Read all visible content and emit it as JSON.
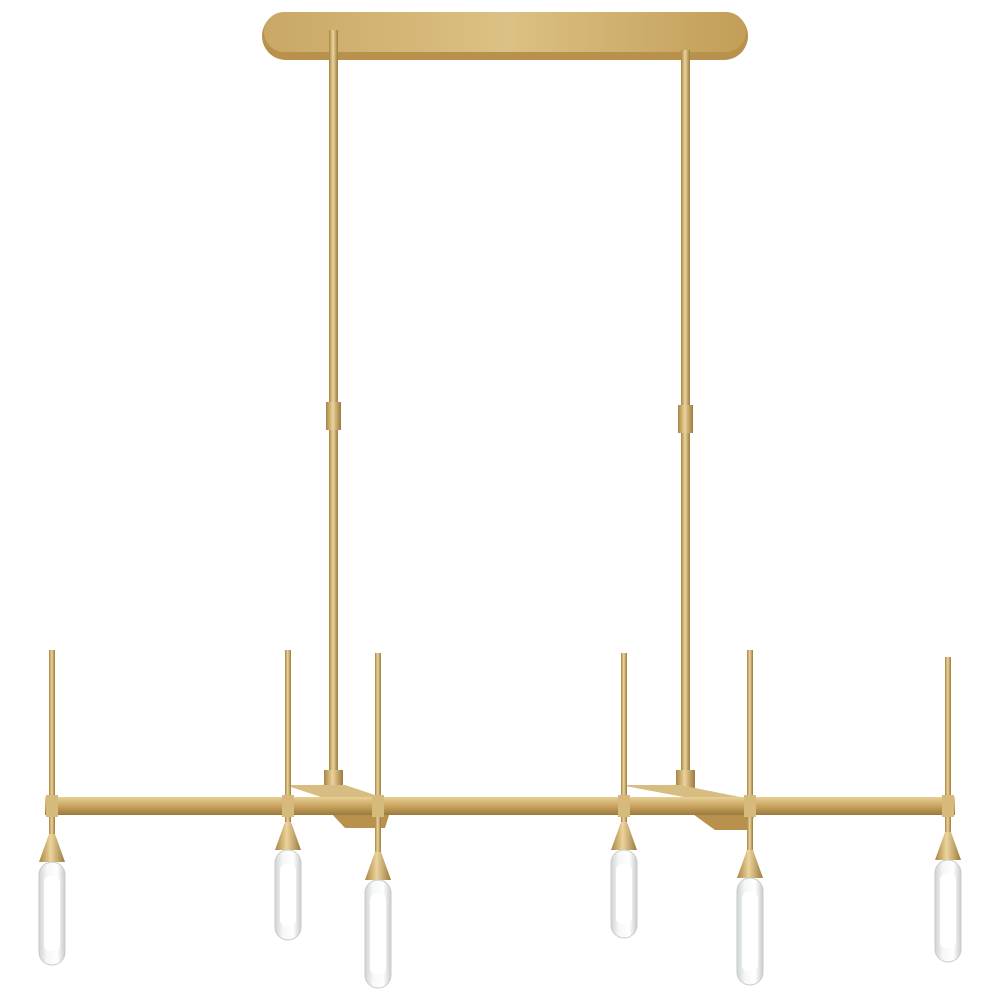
{
  "subject": "linear-chandelier",
  "colors": {
    "background": "#ffffff",
    "brass_light": "#e2c88a",
    "brass_mid": "#c9a45e",
    "brass_dark": "#9c7a3c",
    "glass": "#eef0f0",
    "glass_core": "#ffffff"
  },
  "lights": [
    {
      "stem_top": 650,
      "glass_top": 862,
      "glass_bottom": 965
    },
    {
      "stem_top": 650,
      "glass_top": 850,
      "glass_bottom": 940
    },
    {
      "stem_top": 653,
      "glass_top": 880,
      "glass_bottom": 988
    },
    {
      "stem_top": 653,
      "glass_top": 850,
      "glass_bottom": 938
    },
    {
      "stem_top": 650,
      "glass_top": 878,
      "glass_bottom": 985
    },
    {
      "stem_top": 657,
      "glass_top": 860,
      "glass_bottom": 962
    }
  ]
}
